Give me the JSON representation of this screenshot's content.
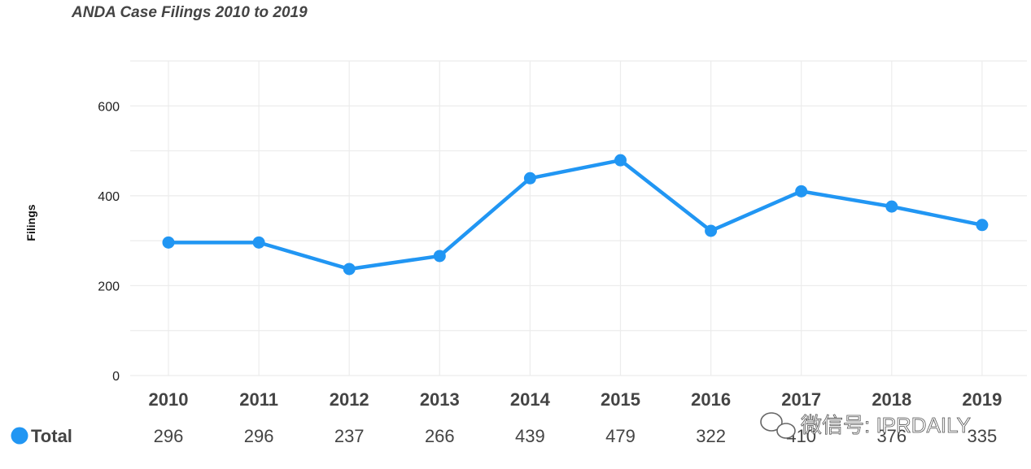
{
  "chart_data": {
    "type": "line",
    "title": "ANDA Case Filings 2010 to 2019",
    "xlabel": "",
    "ylabel": "Filings",
    "categories": [
      "2010",
      "2011",
      "2012",
      "2013",
      "2014",
      "2015",
      "2016",
      "2017",
      "2018",
      "2019"
    ],
    "series": [
      {
        "name": "Total",
        "values": [
          296,
          296,
          237,
          266,
          439,
          479,
          322,
          410,
          376,
          335
        ],
        "color": "#2196f3"
      }
    ],
    "ylim": [
      0,
      700
    ],
    "yticks": [
      0,
      200,
      400,
      600
    ],
    "grid": true,
    "legend": "bottom-left"
  },
  "watermark": {
    "text": "微信号: IPRDAILY",
    "icon": "wechat-icon"
  },
  "colors": {
    "grid": "#ececec",
    "text": "#444444",
    "series": "#2196f3"
  }
}
